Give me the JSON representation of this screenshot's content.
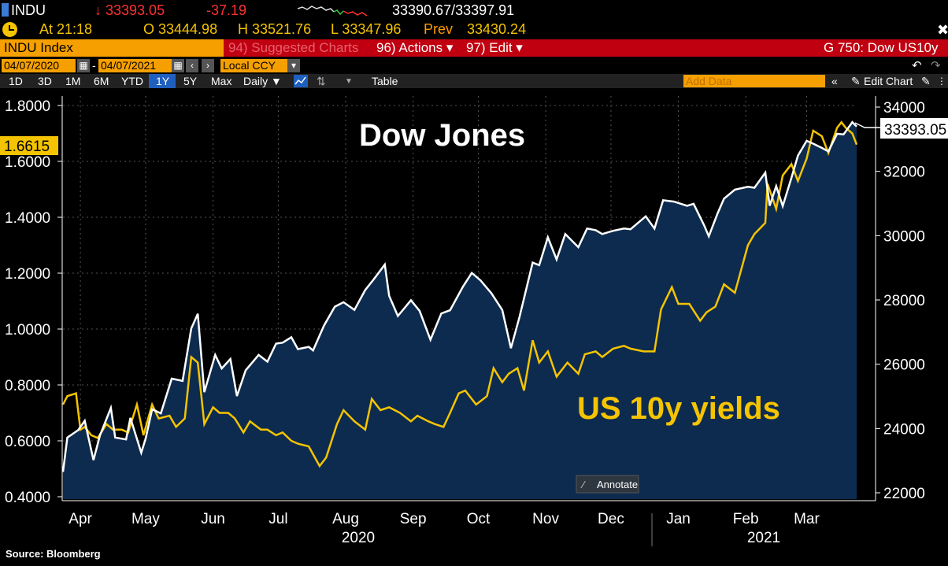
{
  "header": {
    "ticker": "INDU",
    "last_price": "↓ 33393.05",
    "change": "-37.19",
    "bid_ask": "33390.67/33397.91",
    "time_label": "At 21:18",
    "open": "O 33444.98",
    "high": "H 33521.76",
    "low": "L 33347.96",
    "prev_label": "Prev",
    "prev_value": "33430.24"
  },
  "command_bar": {
    "security": "INDU Index",
    "suggested": "94) Suggested Charts",
    "actions": "96) Actions ▾",
    "edit": "97) Edit ▾",
    "page_title": "G 750: Dow US10y"
  },
  "date_range": {
    "start": "04/07/2020",
    "separator": "-",
    "end": "04/07/2021",
    "currency": "Local CCY"
  },
  "toolbar": {
    "periods": [
      "1D",
      "3D",
      "1M",
      "6M",
      "YTD",
      "1Y",
      "5Y",
      "Max"
    ],
    "selected_period": "1Y",
    "frequency": "Daily ▼",
    "table": "Table",
    "add_data": "Add Data",
    "edit_chart": "Edit Chart"
  },
  "colors": {
    "dow_line": "#ffffff",
    "yield_line": "#f5c400",
    "area_fill": "#0d2b4f",
    "accent_bar": "#c00010",
    "orange": "#f5a000"
  },
  "annotate_label": "Annotate",
  "source": "Source: Bloomberg",
  "chart_data": {
    "type": "line",
    "title": "Dow Jones",
    "x_labels": [
      "Apr",
      "May",
      "Jun",
      "Jul",
      "Aug",
      "Sep",
      "Oct",
      "Nov",
      "Dec",
      "Jan",
      "Feb",
      "Mar"
    ],
    "year_labels": [
      "2020",
      "2021"
    ],
    "left_axis": {
      "ticks": [
        "1.8000",
        "1.6000",
        "1.4000",
        "1.2000",
        "1.0000",
        "0.8000",
        "0.6000",
        "0.4000"
      ],
      "range": [
        0.4,
        1.8
      ]
    },
    "right_axis": {
      "ticks": [
        "34000",
        "32000",
        "30000",
        "28000",
        "26000",
        "24000",
        "22000"
      ],
      "range": [
        22000,
        34000
      ]
    },
    "last_labels": {
      "left": "1.6615",
      "right": "33393.05"
    },
    "series": [
      {
        "name": "Dow Jones",
        "axis": "right",
        "points": [
          [
            "2020-04-07",
            22650
          ],
          [
            "2020-04-09",
            23720
          ],
          [
            "2020-04-14",
            23950
          ],
          [
            "2020-04-17",
            24240
          ],
          [
            "2020-04-21",
            23020
          ],
          [
            "2020-04-24",
            23780
          ],
          [
            "2020-04-29",
            24640
          ],
          [
            "2020-05-01",
            23720
          ],
          [
            "2020-05-06",
            23660
          ],
          [
            "2020-05-08",
            24330
          ],
          [
            "2020-05-13",
            23250
          ],
          [
            "2020-05-15",
            23680
          ],
          [
            "2020-05-18",
            24600
          ],
          [
            "2020-05-22",
            24470
          ],
          [
            "2020-05-27",
            25550
          ],
          [
            "2020-06-01",
            25480
          ],
          [
            "2020-06-05",
            27110
          ],
          [
            "2020-06-08",
            27570
          ],
          [
            "2020-06-11",
            25130
          ],
          [
            "2020-06-16",
            26290
          ],
          [
            "2020-06-19",
            25870
          ],
          [
            "2020-06-23",
            26160
          ],
          [
            "2020-06-26",
            25010
          ],
          [
            "2020-06-30",
            25810
          ],
          [
            "2020-07-06",
            26290
          ],
          [
            "2020-07-10",
            26080
          ],
          [
            "2020-07-14",
            26640
          ],
          [
            "2020-07-17",
            26670
          ],
          [
            "2020-07-21",
            26840
          ],
          [
            "2020-07-24",
            26470
          ],
          [
            "2020-07-29",
            26540
          ],
          [
            "2020-07-31",
            26430
          ],
          [
            "2020-08-05",
            27200
          ],
          [
            "2020-08-10",
            27790
          ],
          [
            "2020-08-14",
            27930
          ],
          [
            "2020-08-19",
            27690
          ],
          [
            "2020-08-24",
            28310
          ],
          [
            "2020-08-28",
            28650
          ],
          [
            "2020-09-02",
            29100
          ],
          [
            "2020-09-04",
            28130
          ],
          [
            "2020-09-08",
            27500
          ],
          [
            "2020-09-14",
            27990
          ],
          [
            "2020-09-18",
            27660
          ],
          [
            "2020-09-23",
            26760
          ],
          [
            "2020-09-28",
            27580
          ],
          [
            "2020-10-02",
            27680
          ],
          [
            "2020-10-08",
            28420
          ],
          [
            "2020-10-12",
            28840
          ],
          [
            "2020-10-16",
            28610
          ],
          [
            "2020-10-21",
            28210
          ],
          [
            "2020-10-26",
            27690
          ],
          [
            "2020-10-30",
            26500
          ],
          [
            "2020-11-03",
            27480
          ],
          [
            "2020-11-06",
            28320
          ],
          [
            "2020-11-09",
            29160
          ],
          [
            "2020-11-12",
            29080
          ],
          [
            "2020-11-16",
            29950
          ],
          [
            "2020-11-20",
            29260
          ],
          [
            "2020-11-24",
            30050
          ],
          [
            "2020-11-30",
            29640
          ],
          [
            "2020-12-04",
            30220
          ],
          [
            "2020-12-08",
            30170
          ],
          [
            "2020-12-11",
            30050
          ],
          [
            "2020-12-16",
            30150
          ],
          [
            "2020-12-21",
            30220
          ],
          [
            "2020-12-24",
            30200
          ],
          [
            "2020-12-31",
            30600
          ],
          [
            "2021-01-04",
            30220
          ],
          [
            "2021-01-08",
            31100
          ],
          [
            "2021-01-13",
            31060
          ],
          [
            "2021-01-19",
            30930
          ],
          [
            "2021-01-22",
            30990
          ],
          [
            "2021-01-27",
            30300
          ],
          [
            "2021-01-29",
            29980
          ],
          [
            "2021-02-02",
            30690
          ],
          [
            "2021-02-05",
            31150
          ],
          [
            "2021-02-10",
            31430
          ],
          [
            "2021-02-16",
            31520
          ],
          [
            "2021-02-19",
            31490
          ],
          [
            "2021-02-24",
            31960
          ],
          [
            "2021-02-26",
            30930
          ],
          [
            "2021-03-01",
            31540
          ],
          [
            "2021-03-04",
            30920
          ],
          [
            "2021-03-08",
            31800
          ],
          [
            "2021-03-11",
            32490
          ],
          [
            "2021-03-15",
            32950
          ],
          [
            "2021-03-18",
            32860
          ],
          [
            "2021-03-22",
            32730
          ],
          [
            "2021-03-25",
            32620
          ],
          [
            "2021-03-29",
            33170
          ],
          [
            "2021-04-01",
            33150
          ],
          [
            "2021-04-05",
            33530
          ],
          [
            "2021-04-07",
            33393
          ]
        ]
      },
      {
        "name": "US 10y yields",
        "axis": "left",
        "points": [
          [
            "2020-04-07",
            0.73
          ],
          [
            "2020-04-09",
            0.76
          ],
          [
            "2020-04-13",
            0.77
          ],
          [
            "2020-04-15",
            0.64
          ],
          [
            "2020-04-17",
            0.65
          ],
          [
            "2020-04-20",
            0.62
          ],
          [
            "2020-04-23",
            0.61
          ],
          [
            "2020-04-27",
            0.66
          ],
          [
            "2020-04-30",
            0.64
          ],
          [
            "2020-05-04",
            0.64
          ],
          [
            "2020-05-07",
            0.63
          ],
          [
            "2020-05-11",
            0.73
          ],
          [
            "2020-05-14",
            0.62
          ],
          [
            "2020-05-18",
            0.73
          ],
          [
            "2020-05-21",
            0.68
          ],
          [
            "2020-05-26",
            0.69
          ],
          [
            "2020-05-29",
            0.65
          ],
          [
            "2020-06-02",
            0.68
          ],
          [
            "2020-06-05",
            0.9
          ],
          [
            "2020-06-08",
            0.88
          ],
          [
            "2020-06-11",
            0.66
          ],
          [
            "2020-06-15",
            0.72
          ],
          [
            "2020-06-18",
            0.7
          ],
          [
            "2020-06-22",
            0.7
          ],
          [
            "2020-06-25",
            0.68
          ],
          [
            "2020-06-29",
            0.63
          ],
          [
            "2020-07-02",
            0.67
          ],
          [
            "2020-07-07",
            0.64
          ],
          [
            "2020-07-10",
            0.64
          ],
          [
            "2020-07-14",
            0.62
          ],
          [
            "2020-07-17",
            0.63
          ],
          [
            "2020-07-21",
            0.6
          ],
          [
            "2020-07-24",
            0.59
          ],
          [
            "2020-07-29",
            0.58
          ],
          [
            "2020-08-03",
            0.51
          ],
          [
            "2020-08-06",
            0.54
          ],
          [
            "2020-08-11",
            0.66
          ],
          [
            "2020-08-14",
            0.71
          ],
          [
            "2020-08-19",
            0.67
          ],
          [
            "2020-08-24",
            0.64
          ],
          [
            "2020-08-27",
            0.75
          ],
          [
            "2020-08-31",
            0.71
          ],
          [
            "2020-09-04",
            0.72
          ],
          [
            "2020-09-09",
            0.7
          ],
          [
            "2020-09-14",
            0.67
          ],
          [
            "2020-09-17",
            0.69
          ],
          [
            "2020-09-22",
            0.67
          ],
          [
            "2020-09-25",
            0.66
          ],
          [
            "2020-09-29",
            0.65
          ],
          [
            "2020-10-02",
            0.7
          ],
          [
            "2020-10-06",
            0.77
          ],
          [
            "2020-10-09",
            0.78
          ],
          [
            "2020-10-14",
            0.73
          ],
          [
            "2020-10-19",
            0.76
          ],
          [
            "2020-10-22",
            0.86
          ],
          [
            "2020-10-26",
            0.81
          ],
          [
            "2020-10-29",
            0.84
          ],
          [
            "2020-11-02",
            0.86
          ],
          [
            "2020-11-05",
            0.78
          ],
          [
            "2020-11-09",
            0.96
          ],
          [
            "2020-11-12",
            0.88
          ],
          [
            "2020-11-16",
            0.92
          ],
          [
            "2020-11-20",
            0.83
          ],
          [
            "2020-11-25",
            0.88
          ],
          [
            "2020-11-30",
            0.84
          ],
          [
            "2020-12-03",
            0.91
          ],
          [
            "2020-12-08",
            0.92
          ],
          [
            "2020-12-11",
            0.9
          ],
          [
            "2020-12-16",
            0.93
          ],
          [
            "2020-12-21",
            0.94
          ],
          [
            "2020-12-24",
            0.93
          ],
          [
            "2020-12-30",
            0.92
          ],
          [
            "2021-01-04",
            0.92
          ],
          [
            "2021-01-07",
            1.07
          ],
          [
            "2021-01-12",
            1.15
          ],
          [
            "2021-01-15",
            1.09
          ],
          [
            "2021-01-20",
            1.09
          ],
          [
            "2021-01-25",
            1.03
          ],
          [
            "2021-01-28",
            1.06
          ],
          [
            "2021-02-01",
            1.08
          ],
          [
            "2021-02-05",
            1.16
          ],
          [
            "2021-02-10",
            1.13
          ],
          [
            "2021-02-16",
            1.3
          ],
          [
            "2021-02-19",
            1.34
          ],
          [
            "2021-02-24",
            1.38
          ],
          [
            "2021-02-25",
            1.52
          ],
          [
            "2021-03-01",
            1.43
          ],
          [
            "2021-03-04",
            1.55
          ],
          [
            "2021-03-08",
            1.59
          ],
          [
            "2021-03-11",
            1.53
          ],
          [
            "2021-03-15",
            1.61
          ],
          [
            "2021-03-18",
            1.71
          ],
          [
            "2021-03-22",
            1.69
          ],
          [
            "2021-03-25",
            1.63
          ],
          [
            "2021-03-29",
            1.72
          ],
          [
            "2021-03-31",
            1.74
          ],
          [
            "2021-04-02",
            1.72
          ],
          [
            "2021-04-05",
            1.7
          ],
          [
            "2021-04-07",
            1.66
          ]
        ]
      }
    ]
  }
}
